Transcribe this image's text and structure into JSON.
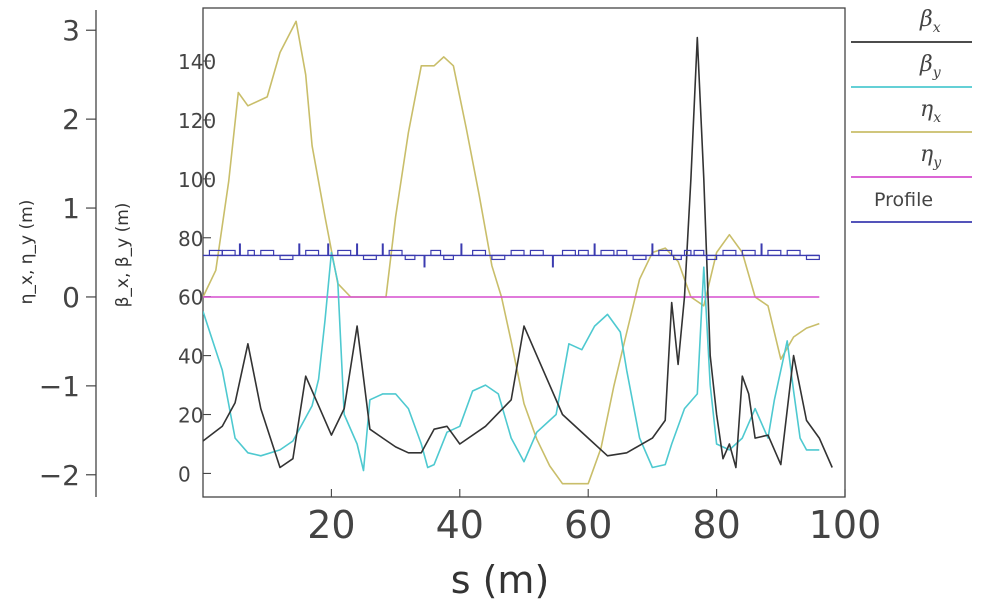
{
  "chart_data": {
    "type": "line",
    "xlabel": "s  (m)",
    "xlim": [
      0,
      100
    ],
    "x_ticks": [
      "20",
      "40",
      "60",
      "80",
      "100"
    ],
    "left_axis": {
      "label": "η_x, η_y (m)",
      "ylim": [
        -2.25,
        3.25
      ],
      "ticks": [
        "3",
        "2",
        "1",
        "0",
        "−1",
        "−2"
      ]
    },
    "right_axis": {
      "label": "β_x, β_y (m)",
      "ylim": [
        -8,
        158
      ],
      "ticks": [
        "140",
        "120",
        "100",
        "80",
        "60",
        "40",
        "20",
        "0"
      ]
    },
    "legend": [
      {
        "sym": "β",
        "sub": "x",
        "color": "#333333"
      },
      {
        "sym": "β",
        "sub": "y",
        "color": "#4ec9d0"
      },
      {
        "sym": "η",
        "sub": "x",
        "color": "#c9be6a"
      },
      {
        "sym": "η",
        "sub": "y",
        "color": "#d64fcf"
      },
      {
        "sym": "",
        "sub": "",
        "label": "Profile",
        "color": "#3b3bb0"
      }
    ],
    "series": [
      {
        "name": "β_x",
        "axis": "beta",
        "color": "#333333",
        "points": [
          [
            0,
            11
          ],
          [
            3,
            16
          ],
          [
            5,
            24
          ],
          [
            7,
            44
          ],
          [
            9,
            22
          ],
          [
            12,
            2
          ],
          [
            14,
            5
          ],
          [
            16,
            33
          ],
          [
            18,
            23
          ],
          [
            20,
            13
          ],
          [
            22,
            22
          ],
          [
            24,
            50
          ],
          [
            26,
            15
          ],
          [
            28,
            12
          ],
          [
            30,
            9
          ],
          [
            32,
            7
          ],
          [
            34,
            7
          ],
          [
            36,
            15
          ],
          [
            38,
            16
          ],
          [
            40,
            10
          ],
          [
            44,
            16
          ],
          [
            48,
            25
          ],
          [
            50,
            50
          ],
          [
            52,
            40
          ],
          [
            56,
            20
          ],
          [
            60,
            12
          ],
          [
            63,
            6
          ],
          [
            66,
            7
          ],
          [
            70,
            12
          ],
          [
            72,
            18
          ],
          [
            73,
            58
          ],
          [
            74,
            37
          ],
          [
            75,
            60
          ],
          [
            76,
            100
          ],
          [
            77,
            148
          ],
          [
            78,
            100
          ],
          [
            79,
            40
          ],
          [
            80,
            20
          ],
          [
            81,
            5
          ],
          [
            82,
            10
          ],
          [
            83,
            2
          ],
          [
            84,
            33
          ],
          [
            85,
            27
          ],
          [
            86,
            12
          ],
          [
            88,
            13
          ],
          [
            90,
            3
          ],
          [
            92,
            40
          ],
          [
            94,
            18
          ],
          [
            96,
            12
          ],
          [
            98,
            2
          ]
        ]
      },
      {
        "name": "β_y",
        "axis": "beta",
        "color": "#4ec9d0",
        "points": [
          [
            0,
            55
          ],
          [
            3,
            35
          ],
          [
            5,
            12
          ],
          [
            7,
            7
          ],
          [
            9,
            6
          ],
          [
            12,
            8
          ],
          [
            14,
            11
          ],
          [
            17,
            23
          ],
          [
            18,
            32
          ],
          [
            19,
            52
          ],
          [
            20,
            75
          ],
          [
            21,
            65
          ],
          [
            22,
            20
          ],
          [
            24,
            10
          ],
          [
            25,
            1
          ],
          [
            26,
            25
          ],
          [
            28,
            27
          ],
          [
            30,
            27
          ],
          [
            32,
            22
          ],
          [
            34,
            10
          ],
          [
            35,
            2
          ],
          [
            36,
            3
          ],
          [
            38,
            14
          ],
          [
            40,
            16
          ],
          [
            42,
            28
          ],
          [
            44,
            30
          ],
          [
            46,
            27
          ],
          [
            48,
            12
          ],
          [
            50,
            4
          ],
          [
            52,
            14
          ],
          [
            55,
            20
          ],
          [
            57,
            44
          ],
          [
            59,
            42
          ],
          [
            61,
            50
          ],
          [
            63,
            54
          ],
          [
            65,
            48
          ],
          [
            66,
            35
          ],
          [
            68,
            12
          ],
          [
            70,
            2
          ],
          [
            72,
            3
          ],
          [
            73,
            10
          ],
          [
            75,
            22
          ],
          [
            77,
            27
          ],
          [
            78,
            70
          ],
          [
            79,
            30
          ],
          [
            80,
            10
          ],
          [
            82,
            8
          ],
          [
            84,
            12
          ],
          [
            86,
            22
          ],
          [
            88,
            12
          ],
          [
            89,
            25
          ],
          [
            91,
            45
          ],
          [
            92,
            28
          ],
          [
            93,
            12
          ],
          [
            94,
            8
          ],
          [
            96,
            8
          ]
        ]
      },
      {
        "name": "η_x",
        "axis": "eta",
        "color": "#c9be6a",
        "points": [
          [
            0,
            0
          ],
          [
            2,
            0.3
          ],
          [
            4,
            1.3
          ],
          [
            5.5,
            2.3
          ],
          [
            7,
            2.15
          ],
          [
            10,
            2.25
          ],
          [
            12,
            2.75
          ],
          [
            14.5,
            3.1
          ],
          [
            16,
            2.5
          ],
          [
            17,
            1.7
          ],
          [
            19,
            0.9
          ],
          [
            21,
            0.15
          ],
          [
            23,
            0
          ],
          [
            26,
            0
          ],
          [
            28.5,
            0
          ],
          [
            30,
            0.9
          ],
          [
            32,
            1.85
          ],
          [
            34,
            2.6
          ],
          [
            36,
            2.6
          ],
          [
            37.5,
            2.7
          ],
          [
            39,
            2.6
          ],
          [
            41,
            1.9
          ],
          [
            43,
            1.15
          ],
          [
            45,
            0.35
          ],
          [
            46.5,
            0
          ],
          [
            48,
            -0.5
          ],
          [
            50,
            -1.2
          ],
          [
            52,
            -1.6
          ],
          [
            54,
            -1.9
          ],
          [
            56,
            -2.1
          ],
          [
            60,
            -2.1
          ],
          [
            62,
            -1.7
          ],
          [
            64,
            -1.0
          ],
          [
            66,
            -0.4
          ],
          [
            68,
            0.2
          ],
          [
            70,
            0.5
          ],
          [
            72,
            0.55
          ],
          [
            74,
            0.4
          ],
          [
            76,
            0
          ],
          [
            78,
            -0.1
          ],
          [
            80,
            0.5
          ],
          [
            82,
            0.7
          ],
          [
            84,
            0.5
          ],
          [
            86,
            0
          ],
          [
            88,
            -0.1
          ],
          [
            90,
            -0.7
          ],
          [
            92,
            -0.45
          ],
          [
            94,
            -0.35
          ],
          [
            96,
            -0.3
          ]
        ]
      },
      {
        "name": "η_y",
        "axis": "eta",
        "color": "#d64fcf",
        "points": [
          [
            0,
            0
          ],
          [
            96,
            0
          ]
        ]
      }
    ],
    "profile": {
      "color": "#3b3bb0",
      "baseline": 74,
      "x_range": [
        0,
        96
      ],
      "elements": [
        [
          1,
          3,
          "box"
        ],
        [
          3,
          5,
          "box"
        ],
        [
          5,
          6.5,
          "tick"
        ],
        [
          7,
          8,
          "box"
        ],
        [
          9,
          11,
          "box"
        ],
        [
          12,
          14,
          "box"
        ],
        [
          14.5,
          15.5,
          "tick"
        ],
        [
          16,
          18,
          "box"
        ],
        [
          19,
          20,
          "tick"
        ],
        [
          21,
          23,
          "box"
        ],
        [
          23.5,
          24.5,
          "tick"
        ],
        [
          25,
          27,
          "box"
        ],
        [
          27.5,
          28.5,
          "tick"
        ],
        [
          29,
          31,
          "box"
        ],
        [
          31.5,
          33,
          "box"
        ],
        [
          34,
          35,
          "tick"
        ],
        [
          35.5,
          37,
          "box"
        ],
        [
          37.5,
          39,
          "box"
        ],
        [
          39.5,
          41,
          "tick"
        ],
        [
          42,
          44,
          "box"
        ],
        [
          45,
          47,
          "box"
        ],
        [
          48,
          50,
          "box"
        ],
        [
          51,
          53,
          "box"
        ],
        [
          54,
          55,
          "tick"
        ],
        [
          56,
          58,
          "box"
        ],
        [
          58.5,
          60,
          "box"
        ],
        [
          60.5,
          61.5,
          "tick"
        ],
        [
          62,
          64,
          "box"
        ],
        [
          64.5,
          66,
          "box"
        ],
        [
          67,
          69,
          "box"
        ],
        [
          69.5,
          70.5,
          "tick"
        ],
        [
          71,
          73,
          "box"
        ],
        [
          73.3,
          74.5,
          "box"
        ],
        [
          75,
          76,
          "box"
        ],
        [
          76.5,
          78,
          "box"
        ],
        [
          78.5,
          80,
          "box"
        ],
        [
          81,
          83,
          "box"
        ],
        [
          84,
          86,
          "box"
        ],
        [
          86.5,
          87.5,
          "tick"
        ],
        [
          88,
          90,
          "box"
        ],
        [
          91,
          93,
          "box"
        ],
        [
          94,
          96,
          "box"
        ]
      ]
    }
  }
}
